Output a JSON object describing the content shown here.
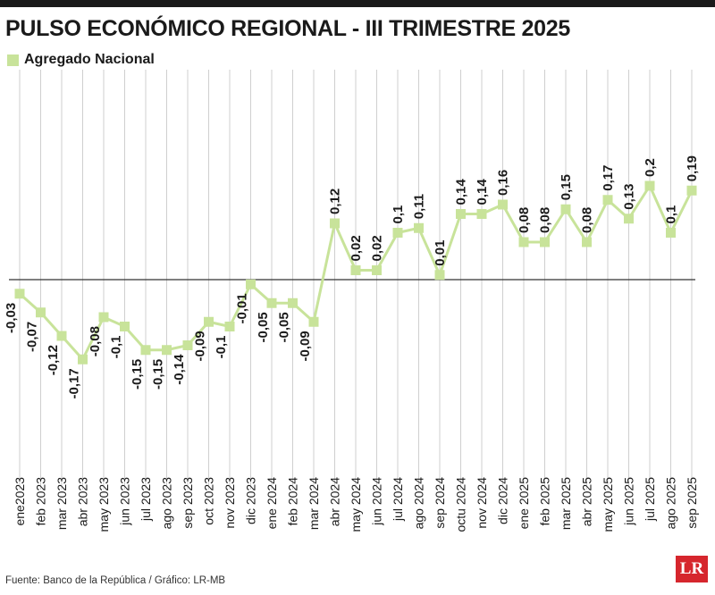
{
  "header": {
    "title": "PULSO ECONÓMICO REGIONAL - III TRIMESTRE 2025"
  },
  "legend": {
    "label": "Agregado Nacional"
  },
  "footer": {
    "source": "Fuente: Banco de la República / Gráfico: LR-MB",
    "logo_text": "LR"
  },
  "colors": {
    "series": "#c8e39a",
    "marker": "#c8e39a",
    "grid": "#cfcfcf",
    "zero_line": "#333333",
    "text": "#1a1a1a",
    "logo": "#d6262d"
  },
  "chart_data": {
    "type": "line",
    "categories": [
      "ene2023",
      "feb 2023",
      "mar 2023",
      "abr 2023",
      "may 2023",
      "jun 2023",
      "jul 2023",
      "ago 2023",
      "sep 2023",
      "oct 2023",
      "nov 2023",
      "dic 2023",
      "ene 2024",
      "feb 2024",
      "mar 2024",
      "abr 2024",
      "may 2024",
      "jun 2024",
      "jul 2024",
      "ago 2024",
      "sep 2024",
      "octu 2024",
      "nov 2024",
      "dic 2024",
      "ene 2025",
      "feb 2025",
      "mar 2025",
      "abr 2025",
      "may 2025",
      "jun 2025",
      "jul 2025",
      "ago 2025",
      "sep 2025"
    ],
    "series": [
      {
        "name": "Agregado Nacional",
        "values": [
          -0.03,
          -0.07,
          -0.12,
          -0.17,
          -0.08,
          -0.1,
          -0.15,
          -0.15,
          -0.14,
          -0.09,
          -0.1,
          -0.01,
          -0.05,
          -0.05,
          -0.09,
          0.12,
          0.02,
          0.02,
          0.1,
          0.11,
          0.01,
          0.14,
          0.14,
          0.16,
          0.08,
          0.08,
          0.15,
          0.08,
          0.17,
          0.13,
          0.2,
          0.1,
          0.19
        ],
        "labels": [
          "-0,03",
          "-0,07",
          "-0,12",
          "-0,17",
          "-0,08",
          "-0,1",
          "-0,15",
          "-0,15",
          "-0,14",
          "-0,09",
          "-0,1",
          "-0,01",
          "-0,05",
          "-0,05",
          "-0,09",
          "0,12",
          "0,02",
          "0,02",
          "0,1",
          "0,11",
          "0,01",
          "0,14",
          "0,14",
          "0,16",
          "0,08",
          "0,08",
          "0,15",
          "0,08",
          "0,17",
          "0,13",
          "0,2",
          "0,1",
          "0,19"
        ]
      }
    ],
    "ylim": [
      -0.2,
      0.22
    ],
    "grid": true,
    "legend_position": "top-left",
    "title": "PULSO ECONÓMICO REGIONAL - III TRIMESTRE 2025",
    "xlabel": "",
    "ylabel": ""
  }
}
